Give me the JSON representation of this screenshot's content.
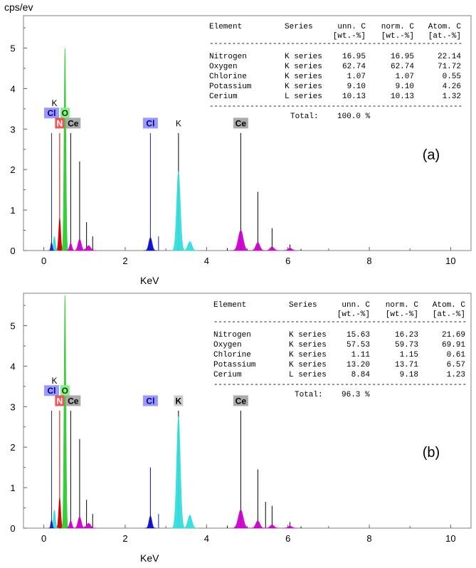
{
  "y_unit": "cps/ev",
  "chart_data": [
    {
      "type": "line",
      "panel_label": "(a)",
      "xlabel": "KeV",
      "ylabel": "",
      "xlim": [
        -0.5,
        10.5
      ],
      "ylim": [
        0,
        5.8
      ],
      "x_ticks": [
        "0",
        "2",
        "4",
        "6",
        "8",
        "10"
      ],
      "y_ticks": [
        "0",
        "1",
        "2",
        "3",
        "4",
        "5"
      ],
      "peaks": [
        {
          "element": "N",
          "energy": 0.39,
          "height": 0.8,
          "width": 0.025,
          "color": "#cc0000"
        },
        {
          "element": "O",
          "energy": 0.52,
          "height": 5.0,
          "width": 0.022,
          "color": "#33cc33"
        },
        {
          "element": "K",
          "energy": 0.26,
          "height": 0.35,
          "width": 0.025,
          "color": "#33dddd"
        },
        {
          "element": "Cl",
          "energy": 0.19,
          "height": 0.2,
          "width": 0.02,
          "color": "#2020b0"
        },
        {
          "element": "Ce",
          "energy": 0.66,
          "height": 0.18,
          "width": 0.03,
          "color": "#cc00cc"
        },
        {
          "element": "Ce",
          "energy": 0.88,
          "height": 0.28,
          "width": 0.04,
          "color": "#cc00cc"
        },
        {
          "element": "Ce",
          "energy": 1.1,
          "height": 0.12,
          "width": 0.05,
          "color": "#cc00cc"
        },
        {
          "element": "Cl",
          "energy": 2.62,
          "height": 0.32,
          "width": 0.04,
          "color": "#0a0ad0"
        },
        {
          "element": "K",
          "energy": 3.31,
          "height": 1.95,
          "width": 0.045,
          "color": "#33dddd"
        },
        {
          "element": "K",
          "energy": 3.59,
          "height": 0.22,
          "width": 0.05,
          "color": "#33dddd"
        },
        {
          "element": "Ce",
          "energy": 4.84,
          "height": 0.5,
          "width": 0.06,
          "color": "#cc00cc"
        },
        {
          "element": "Ce",
          "energy": 5.26,
          "height": 0.2,
          "width": 0.05,
          "color": "#cc00cc"
        },
        {
          "element": "Ce",
          "energy": 5.61,
          "height": 0.09,
          "width": 0.05,
          "color": "#cc00cc"
        },
        {
          "element": "Ce",
          "energy": 6.05,
          "height": 0.06,
          "width": 0.05,
          "color": "#cc00cc"
        }
      ],
      "markers": [
        {
          "energy": 0.19,
          "height": 2.9,
          "color": "#2020b0"
        },
        {
          "energy": 0.39,
          "height": 2.9,
          "color": "#cc0000"
        },
        {
          "energy": 0.52,
          "height": 3.1,
          "color": "#33cc33"
        },
        {
          "energy": 0.66,
          "height": 2.9,
          "color": "#000000"
        },
        {
          "energy": 0.88,
          "height": 2.2,
          "color": "#000000"
        },
        {
          "energy": 1.05,
          "height": 0.7,
          "color": "#000000"
        },
        {
          "energy": 1.2,
          "height": 0.35,
          "color": "#000000"
        },
        {
          "energy": 2.62,
          "height": 2.9,
          "color": "#2020b0"
        },
        {
          "energy": 2.82,
          "height": 0.35,
          "color": "#2020b0"
        },
        {
          "energy": 3.31,
          "height": 2.9,
          "color": "#000000"
        },
        {
          "energy": 4.84,
          "height": 2.9,
          "color": "#000000"
        },
        {
          "energy": 5.26,
          "height": 1.45,
          "color": "#000000"
        },
        {
          "energy": 5.61,
          "height": 0.55,
          "color": "#000000"
        },
        {
          "energy": 6.05,
          "height": 0.15,
          "color": "#000000"
        },
        {
          "energy": 4.51,
          "height": 0.06,
          "color": "#000000"
        },
        {
          "energy": 6.32,
          "height": 0.04,
          "color": "#000000"
        }
      ],
      "labels": [
        {
          "text": "K",
          "energy": 0.26,
          "level": 3.55,
          "boxed": false,
          "bg": "",
          "fg": "#000000"
        },
        {
          "text": "Cl",
          "energy": 0.19,
          "level": 3.3,
          "boxed": true,
          "bg": "#9999ff",
          "fg": "#000080"
        },
        {
          "text": "O",
          "energy": 0.52,
          "level": 3.3,
          "boxed": true,
          "bg": "#88ee88",
          "fg": "#004400"
        },
        {
          "text": "N",
          "energy": 0.39,
          "level": 3.05,
          "boxed": true,
          "bg": "#ee5555",
          "fg": "#ffffff"
        },
        {
          "text": "Ce",
          "energy": 0.72,
          "level": 3.05,
          "boxed": true,
          "bg": "#aaaaaa",
          "fg": "#000000"
        },
        {
          "text": "Cl",
          "energy": 2.62,
          "level": 3.05,
          "boxed": true,
          "bg": "#9999ff",
          "fg": "#000080"
        },
        {
          "text": "K",
          "energy": 3.31,
          "level": 3.05,
          "boxed": false,
          "bg": "",
          "fg": "#000000"
        },
        {
          "text": "Ce",
          "energy": 4.84,
          "level": 3.05,
          "boxed": true,
          "bg": "#aaaaaa",
          "fg": "#000000"
        }
      ],
      "table": {
        "headers": [
          "Element",
          "Series",
          "unn. C",
          "norm. C",
          "Atom. C"
        ],
        "units": [
          "",
          "",
          "[wt.-%]",
          "[wt.-%]",
          "[at.-%]"
        ],
        "rows": [
          [
            "Nitrogen",
            "K series",
            "16.95",
            "16.95",
            "22.14"
          ],
          [
            "Oxygen",
            "K series",
            "62.74",
            "62.74",
            "71.72"
          ],
          [
            "Chlorine",
            "K series",
            "1.07",
            "1.07",
            "0.55"
          ],
          [
            "Potassium",
            "K series",
            "9.10",
            "9.10",
            "4.26"
          ],
          [
            "Cerium",
            "L series",
            "10.13",
            "10.13",
            "1.32"
          ]
        ],
        "separator": "--------------------------------------------------------",
        "total_label": "Total:",
        "total_value": "100.0 %"
      }
    },
    {
      "type": "line",
      "panel_label": "(b)",
      "xlabel": "KeV",
      "ylabel": "",
      "xlim": [
        -0.5,
        10.5
      ],
      "ylim": [
        0,
        5.8
      ],
      "x_ticks": [
        "0",
        "2",
        "4",
        "6",
        "8",
        "10"
      ],
      "y_ticks": [
        "0",
        "1",
        "2",
        "3",
        "4",
        "5"
      ],
      "peaks": [
        {
          "element": "N",
          "energy": 0.39,
          "height": 0.75,
          "width": 0.025,
          "color": "#cc0000"
        },
        {
          "element": "O",
          "energy": 0.52,
          "height": 5.75,
          "width": 0.022,
          "color": "#33cc33"
        },
        {
          "element": "K",
          "energy": 0.26,
          "height": 0.45,
          "width": 0.025,
          "color": "#33dddd"
        },
        {
          "element": "Cl",
          "energy": 0.19,
          "height": 0.2,
          "width": 0.02,
          "color": "#2020b0"
        },
        {
          "element": "Ce",
          "energy": 0.66,
          "height": 0.18,
          "width": 0.03,
          "color": "#cc00cc"
        },
        {
          "element": "Ce",
          "energy": 0.88,
          "height": 0.28,
          "width": 0.04,
          "color": "#cc00cc"
        },
        {
          "element": "Ce",
          "energy": 1.1,
          "height": 0.12,
          "width": 0.05,
          "color": "#cc00cc"
        },
        {
          "element": "Cl",
          "energy": 2.62,
          "height": 0.3,
          "width": 0.035,
          "color": "#0a0ad0"
        },
        {
          "element": "K",
          "energy": 3.31,
          "height": 2.75,
          "width": 0.045,
          "color": "#33dddd"
        },
        {
          "element": "K",
          "energy": 3.59,
          "height": 0.32,
          "width": 0.05,
          "color": "#33dddd"
        },
        {
          "element": "Ce",
          "energy": 4.84,
          "height": 0.45,
          "width": 0.06,
          "color": "#cc00cc"
        },
        {
          "element": "Ce",
          "energy": 5.26,
          "height": 0.18,
          "width": 0.05,
          "color": "#cc00cc"
        },
        {
          "element": "Ce",
          "energy": 5.61,
          "height": 0.08,
          "width": 0.05,
          "color": "#cc00cc"
        },
        {
          "element": "Ce",
          "energy": 6.05,
          "height": 0.05,
          "width": 0.05,
          "color": "#cc00cc"
        }
      ],
      "markers": [
        {
          "energy": 0.19,
          "height": 2.9,
          "color": "#2020b0"
        },
        {
          "energy": 0.39,
          "height": 2.9,
          "color": "#cc0000"
        },
        {
          "energy": 0.52,
          "height": 3.1,
          "color": "#33cc33"
        },
        {
          "energy": 0.66,
          "height": 2.9,
          "color": "#000000"
        },
        {
          "energy": 0.88,
          "height": 2.2,
          "color": "#000000"
        },
        {
          "energy": 1.05,
          "height": 0.7,
          "color": "#000000"
        },
        {
          "energy": 1.2,
          "height": 0.35,
          "color": "#000000"
        },
        {
          "energy": 2.62,
          "height": 1.5,
          "color": "#0a0ad0"
        },
        {
          "energy": 2.82,
          "height": 0.35,
          "color": "#2020b0"
        },
        {
          "energy": 3.31,
          "height": 2.9,
          "color": "#000000"
        },
        {
          "energy": 4.84,
          "height": 2.9,
          "color": "#000000"
        },
        {
          "energy": 5.26,
          "height": 1.45,
          "color": "#000000"
        },
        {
          "energy": 5.45,
          "height": 0.65,
          "color": "#000000"
        },
        {
          "energy": 5.61,
          "height": 0.55,
          "color": "#000000"
        },
        {
          "energy": 6.05,
          "height": 0.15,
          "color": "#000000"
        },
        {
          "energy": 4.51,
          "height": 0.06,
          "color": "#000000"
        },
        {
          "energy": 6.32,
          "height": 0.04,
          "color": "#000000"
        }
      ],
      "labels": [
        {
          "text": "K",
          "energy": 0.26,
          "level": 3.55,
          "boxed": false,
          "bg": "",
          "fg": "#000000"
        },
        {
          "text": "Cl",
          "energy": 0.19,
          "level": 3.3,
          "boxed": true,
          "bg": "#9999ff",
          "fg": "#000080"
        },
        {
          "text": "O",
          "energy": 0.52,
          "level": 3.3,
          "boxed": true,
          "bg": "#88ee88",
          "fg": "#004400"
        },
        {
          "text": "N",
          "energy": 0.39,
          "level": 3.05,
          "boxed": true,
          "bg": "#ee5555",
          "fg": "#ffffff"
        },
        {
          "text": "Ce",
          "energy": 0.72,
          "level": 3.05,
          "boxed": true,
          "bg": "#aaaaaa",
          "fg": "#000000"
        },
        {
          "text": "Cl",
          "energy": 2.62,
          "level": 3.05,
          "boxed": true,
          "bg": "#9999ff",
          "fg": "#000080"
        },
        {
          "text": "K",
          "energy": 3.31,
          "level": 3.05,
          "boxed": true,
          "bg": "#cccccc",
          "fg": "#000000"
        },
        {
          "text": "Ce",
          "energy": 4.84,
          "level": 3.05,
          "boxed": true,
          "bg": "#aaaaaa",
          "fg": "#000000"
        }
      ],
      "table": {
        "headers": [
          "Element",
          "Series",
          "unn. C",
          "norm. C",
          "Atom. C"
        ],
        "units": [
          "",
          "",
          "[wt.-%]",
          "[wt.-%]",
          "[at.-%]"
        ],
        "rows": [
          [
            "Nitrogen",
            "K series",
            "15.63",
            "16.23",
            "21.69"
          ],
          [
            "Oxygen",
            "K series",
            "57.53",
            "59.73",
            "69.91"
          ],
          [
            "Chlorine",
            "K series",
            "1.11",
            "1.15",
            "0.61"
          ],
          [
            "Potassium",
            "K series",
            "13.20",
            "13.71",
            "6.57"
          ],
          [
            "Cerium",
            "L series",
            "8.84",
            "9.18",
            "1.23"
          ]
        ],
        "separator": "--------------------------------------------------------",
        "total_label": "Total:",
        "total_value": "96.3 %"
      }
    }
  ]
}
